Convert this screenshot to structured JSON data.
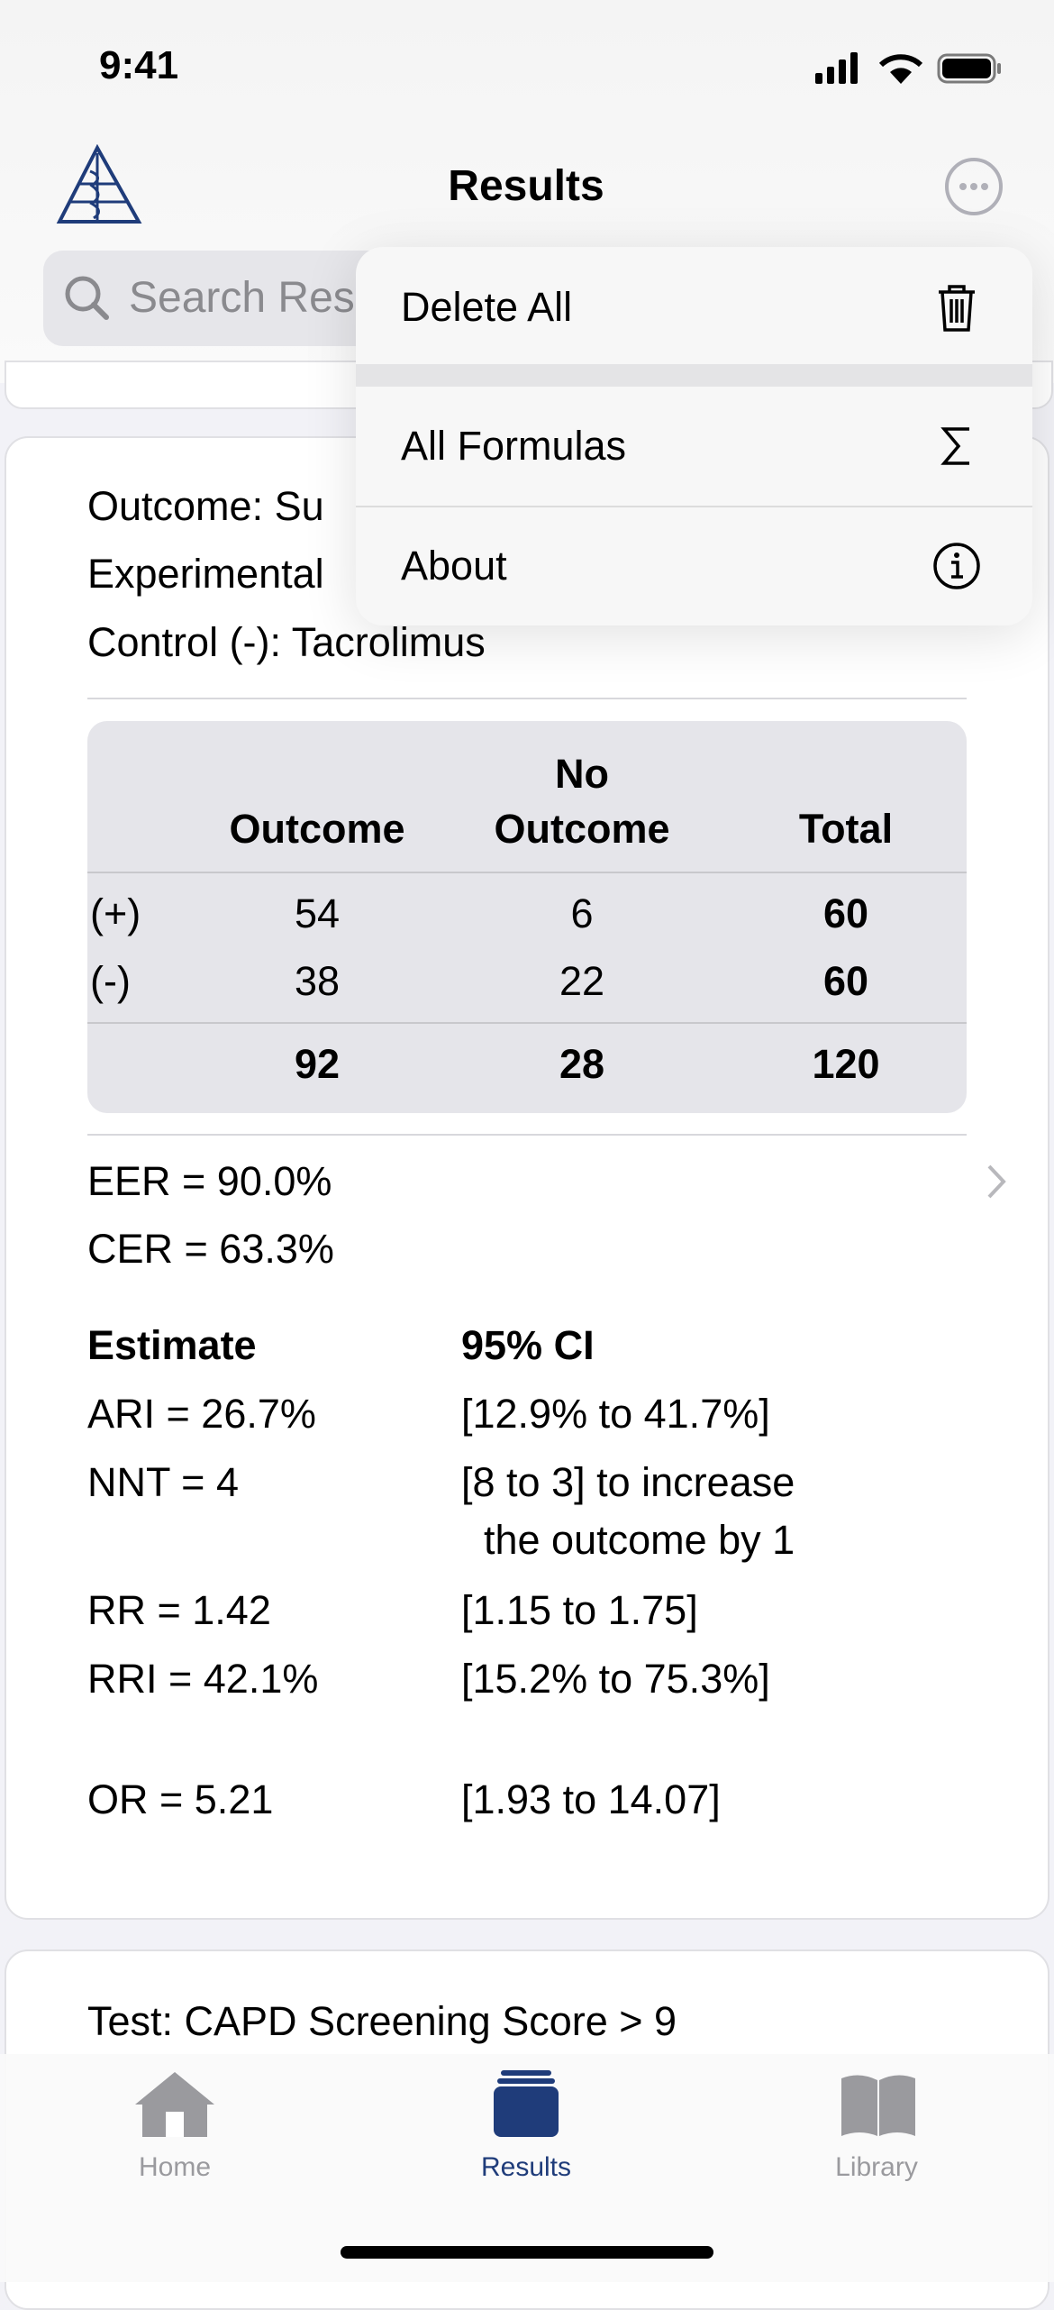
{
  "status_bar": {
    "time": "9:41"
  },
  "nav": {
    "title": "Results",
    "search_placeholder": "Search Res"
  },
  "menu": {
    "items": [
      "Delete All",
      "All Formulas",
      "About"
    ]
  },
  "card": {
    "header_lines": [
      "Outcome: Su",
      "Experimental",
      "Control (-): Tacrolimus"
    ],
    "table": {
      "header_top": [
        "",
        "No",
        ""
      ],
      "header": [
        "Outcome",
        "Outcome",
        "Total"
      ],
      "rows": [
        [
          "(+)",
          "54",
          "6",
          "60"
        ],
        [
          "(-)",
          "38",
          "22",
          "60"
        ]
      ],
      "totals": [
        "92",
        "28",
        "120"
      ]
    },
    "rates": [
      "EER = 90.0%",
      "CER = 63.3%"
    ],
    "estimates_header": [
      "Estimate",
      "95% CI"
    ],
    "estimates": [
      [
        "ARI = 26.7%",
        "[12.9% to 41.7%]"
      ],
      [
        "NNT = 4",
        "[8 to 3] to increase",
        "the outcome by 1"
      ],
      [
        "RR = 1.42",
        "[1.15 to 1.75]"
      ],
      [
        "RRI = 42.1%",
        "[15.2% to 75.3%]"
      ],
      [
        "OR = 5.21",
        "[1.93 to 14.07]"
      ]
    ]
  },
  "next_card": {
    "title": "Test: CAPD Screening Score > 9"
  },
  "tab_bar": {
    "tabs": [
      "Home",
      "Results",
      "Library"
    ]
  }
}
